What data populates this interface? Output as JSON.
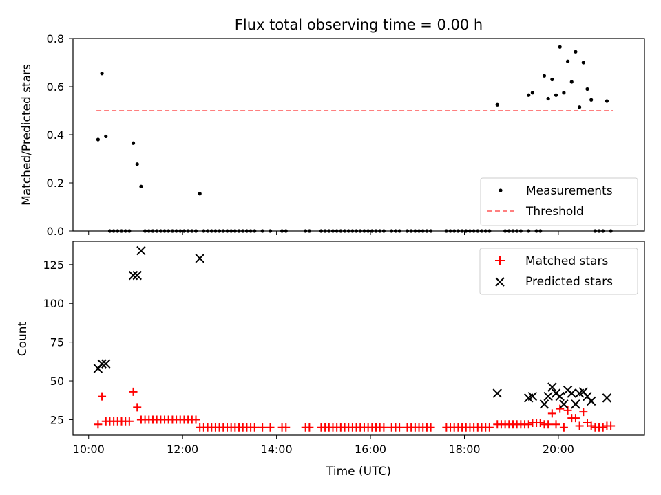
{
  "chart_data": [
    {
      "type": "scatter",
      "title": "Flux total observing time = 0.00 h",
      "xlabel": "",
      "ylabel": "Matched/Predicted stars",
      "xlim": [
        "09:40",
        "21:50"
      ],
      "ylim": [
        0,
        0.8
      ],
      "y_ticks": [
        "0.0",
        "0.2",
        "0.4",
        "0.6",
        "0.8"
      ],
      "grid": false,
      "legend_position": "lower right",
      "threshold": {
        "name": "Threshold",
        "value": 0.5,
        "x_start": "10:10",
        "x_end": "21:10",
        "color": "#ff7f7f",
        "style": "dashed"
      },
      "series": [
        {
          "name": "Measurements",
          "marker": "dot",
          "color": "#000000",
          "points": [
            [
              "10:12",
              0.38
            ],
            [
              "10:17",
              0.655
            ],
            [
              "10:22",
              0.393
            ],
            [
              "10:27",
              0
            ],
            [
              "10:32",
              0
            ],
            [
              "10:37",
              0
            ],
            [
              "10:42",
              0
            ],
            [
              "10:47",
              0
            ],
            [
              "10:52",
              0
            ],
            [
              "10:57",
              0.365
            ],
            [
              "11:02",
              0.278
            ],
            [
              "11:07",
              0.185
            ],
            [
              "11:12",
              0
            ],
            [
              "11:17",
              0
            ],
            [
              "11:22",
              0
            ],
            [
              "11:27",
              0
            ],
            [
              "11:32",
              0
            ],
            [
              "11:37",
              0
            ],
            [
              "11:42",
              0
            ],
            [
              "11:47",
              0
            ],
            [
              "11:52",
              0
            ],
            [
              "11:57",
              0
            ],
            [
              "12:02",
              0
            ],
            [
              "12:07",
              0
            ],
            [
              "12:12",
              0
            ],
            [
              "12:17",
              0
            ],
            [
              "12:22",
              0.155
            ],
            [
              "12:27",
              0
            ],
            [
              "12:32",
              0
            ],
            [
              "12:37",
              0
            ],
            [
              "12:42",
              0
            ],
            [
              "12:47",
              0
            ],
            [
              "12:52",
              0
            ],
            [
              "12:57",
              0
            ],
            [
              "13:02",
              0
            ],
            [
              "13:07",
              0
            ],
            [
              "13:12",
              0
            ],
            [
              "13:17",
              0
            ],
            [
              "13:22",
              0
            ],
            [
              "13:27",
              0
            ],
            [
              "13:32",
              0
            ],
            [
              "13:42",
              0
            ],
            [
              "13:52",
              0
            ],
            [
              "14:07",
              0
            ],
            [
              "14:12",
              0
            ],
            [
              "14:37",
              0
            ],
            [
              "14:42",
              0
            ],
            [
              "14:57",
              0
            ],
            [
              "15:02",
              0
            ],
            [
              "15:07",
              0
            ],
            [
              "15:12",
              0
            ],
            [
              "15:17",
              0
            ],
            [
              "15:22",
              0
            ],
            [
              "15:27",
              0
            ],
            [
              "15:32",
              0
            ],
            [
              "15:37",
              0
            ],
            [
              "15:42",
              0
            ],
            [
              "15:47",
              0
            ],
            [
              "15:52",
              0
            ],
            [
              "15:57",
              0
            ],
            [
              "16:02",
              0
            ],
            [
              "16:07",
              0
            ],
            [
              "16:12",
              0
            ],
            [
              "16:17",
              0
            ],
            [
              "16:27",
              0
            ],
            [
              "16:32",
              0
            ],
            [
              "16:37",
              0
            ],
            [
              "16:47",
              0
            ],
            [
              "16:52",
              0
            ],
            [
              "16:57",
              0
            ],
            [
              "17:02",
              0
            ],
            [
              "17:07",
              0
            ],
            [
              "17:12",
              0
            ],
            [
              "17:17",
              0
            ],
            [
              "17:37",
              0
            ],
            [
              "17:42",
              0
            ],
            [
              "17:47",
              0
            ],
            [
              "17:52",
              0
            ],
            [
              "17:57",
              0
            ],
            [
              "18:02",
              0
            ],
            [
              "18:07",
              0
            ],
            [
              "18:12",
              0
            ],
            [
              "18:17",
              0
            ],
            [
              "18:22",
              0
            ],
            [
              "18:27",
              0
            ],
            [
              "18:32",
              0
            ],
            [
              "18:42",
              0.525
            ],
            [
              "18:52",
              0
            ],
            [
              "18:57",
              0
            ],
            [
              "19:02",
              0
            ],
            [
              "19:07",
              0
            ],
            [
              "19:12",
              0
            ],
            [
              "19:22",
              0
            ],
            [
              "19:22",
              0.565
            ],
            [
              "19:27",
              0.575
            ],
            [
              "19:32",
              0
            ],
            [
              "19:37",
              0
            ],
            [
              "19:42",
              0.645
            ],
            [
              "19:47",
              0.55
            ],
            [
              "19:52",
              0.63
            ],
            [
              "19:57",
              0.565
            ],
            [
              "20:02",
              0.765
            ],
            [
              "20:07",
              0.575
            ],
            [
              "20:12",
              0.705
            ],
            [
              "20:17",
              0.62
            ],
            [
              "20:22",
              0.745
            ],
            [
              "20:27",
              0.515
            ],
            [
              "20:32",
              0.7
            ],
            [
              "20:37",
              0.59
            ],
            [
              "20:42",
              0.545
            ],
            [
              "20:47",
              0
            ],
            [
              "20:52",
              0
            ],
            [
              "20:57",
              0
            ],
            [
              "21:02",
              0.54
            ],
            [
              "21:07",
              0
            ]
          ]
        }
      ]
    },
    {
      "type": "scatter",
      "title": "",
      "xlabel": "Time (UTC)",
      "ylabel": "Count",
      "xlim": [
        "09:40",
        "21:50"
      ],
      "ylim": [
        15,
        140
      ],
      "x_ticks": [
        "10:00",
        "12:00",
        "14:00",
        "16:00",
        "18:00",
        "20:00"
      ],
      "y_ticks": [
        "25",
        "50",
        "75",
        "100",
        "125"
      ],
      "grid": false,
      "legend_position": "upper right",
      "series": [
        {
          "name": "Matched stars",
          "marker": "plus",
          "color": "#ff0000",
          "points": [
            [
              "10:12",
              22
            ],
            [
              "10:17",
              40
            ],
            [
              "10:22",
              24
            ],
            [
              "10:27",
              24
            ],
            [
              "10:32",
              24
            ],
            [
              "10:37",
              24
            ],
            [
              "10:42",
              24
            ],
            [
              "10:47",
              24
            ],
            [
              "10:52",
              24
            ],
            [
              "10:57",
              43
            ],
            [
              "11:02",
              33
            ],
            [
              "11:07",
              25
            ],
            [
              "11:12",
              25
            ],
            [
              "11:17",
              25
            ],
            [
              "11:22",
              25
            ],
            [
              "11:27",
              25
            ],
            [
              "11:32",
              25
            ],
            [
              "11:37",
              25
            ],
            [
              "11:42",
              25
            ],
            [
              "11:47",
              25
            ],
            [
              "11:52",
              25
            ],
            [
              "11:57",
              25
            ],
            [
              "12:02",
              25
            ],
            [
              "12:07",
              25
            ],
            [
              "12:12",
              25
            ],
            [
              "12:17",
              25
            ],
            [
              "12:22",
              20
            ],
            [
              "12:27",
              20
            ],
            [
              "12:32",
              20
            ],
            [
              "12:37",
              20
            ],
            [
              "12:42",
              20
            ],
            [
              "12:47",
              20
            ],
            [
              "12:52",
              20
            ],
            [
              "12:57",
              20
            ],
            [
              "13:02",
              20
            ],
            [
              "13:07",
              20
            ],
            [
              "13:12",
              20
            ],
            [
              "13:17",
              20
            ],
            [
              "13:22",
              20
            ],
            [
              "13:27",
              20
            ],
            [
              "13:32",
              20
            ],
            [
              "13:42",
              20
            ],
            [
              "13:52",
              20
            ],
            [
              "14:07",
              20
            ],
            [
              "14:12",
              20
            ],
            [
              "14:37",
              20
            ],
            [
              "14:42",
              20
            ],
            [
              "14:57",
              20
            ],
            [
              "15:02",
              20
            ],
            [
              "15:07",
              20
            ],
            [
              "15:12",
              20
            ],
            [
              "15:17",
              20
            ],
            [
              "15:22",
              20
            ],
            [
              "15:27",
              20
            ],
            [
              "15:32",
              20
            ],
            [
              "15:37",
              20
            ],
            [
              "15:42",
              20
            ],
            [
              "15:47",
              20
            ],
            [
              "15:52",
              20
            ],
            [
              "15:57",
              20
            ],
            [
              "16:02",
              20
            ],
            [
              "16:07",
              20
            ],
            [
              "16:12",
              20
            ],
            [
              "16:17",
              20
            ],
            [
              "16:27",
              20
            ],
            [
              "16:32",
              20
            ],
            [
              "16:37",
              20
            ],
            [
              "16:47",
              20
            ],
            [
              "16:52",
              20
            ],
            [
              "16:57",
              20
            ],
            [
              "17:02",
              20
            ],
            [
              "17:07",
              20
            ],
            [
              "17:12",
              20
            ],
            [
              "17:17",
              20
            ],
            [
              "17:37",
              20
            ],
            [
              "17:42",
              20
            ],
            [
              "17:47",
              20
            ],
            [
              "17:52",
              20
            ],
            [
              "17:57",
              20
            ],
            [
              "18:02",
              20
            ],
            [
              "18:07",
              20
            ],
            [
              "18:12",
              20
            ],
            [
              "18:17",
              20
            ],
            [
              "18:22",
              20
            ],
            [
              "18:27",
              20
            ],
            [
              "18:32",
              20
            ],
            [
              "18:42",
              22
            ],
            [
              "18:47",
              22
            ],
            [
              "18:52",
              22
            ],
            [
              "18:57",
              22
            ],
            [
              "19:02",
              22
            ],
            [
              "19:07",
              22
            ],
            [
              "19:12",
              22
            ],
            [
              "19:17",
              22
            ],
            [
              "19:22",
              22
            ],
            [
              "19:27",
              23
            ],
            [
              "19:32",
              23
            ],
            [
              "19:37",
              23
            ],
            [
              "19:42",
              22
            ],
            [
              "19:47",
              22
            ],
            [
              "19:52",
              29
            ],
            [
              "19:57",
              22
            ],
            [
              "20:02",
              32
            ],
            [
              "20:07",
              20
            ],
            [
              "20:12",
              31
            ],
            [
              "20:17",
              26
            ],
            [
              "20:22",
              26
            ],
            [
              "20:27",
              21
            ],
            [
              "20:32",
              30
            ],
            [
              "20:37",
              23
            ],
            [
              "20:42",
              21
            ],
            [
              "20:47",
              20
            ],
            [
              "20:52",
              20
            ],
            [
              "20:57",
              20
            ],
            [
              "21:02",
              21
            ],
            [
              "21:07",
              21
            ]
          ]
        },
        {
          "name": "Predicted stars",
          "marker": "x",
          "color": "#000000",
          "points": [
            [
              "10:12",
              58
            ],
            [
              "10:17",
              61
            ],
            [
              "10:22",
              61
            ],
            [
              "10:57",
              118
            ],
            [
              "11:02",
              118
            ],
            [
              "11:07",
              134
            ],
            [
              "12:22",
              129
            ],
            [
              "18:42",
              42
            ],
            [
              "19:22",
              39
            ],
            [
              "19:27",
              40
            ],
            [
              "19:42",
              35
            ],
            [
              "19:47",
              40
            ],
            [
              "19:52",
              46
            ],
            [
              "19:57",
              42
            ],
            [
              "20:02",
              40
            ],
            [
              "20:07",
              35
            ],
            [
              "20:12",
              44
            ],
            [
              "20:17",
              42
            ],
            [
              "20:22",
              35
            ],
            [
              "20:27",
              42
            ],
            [
              "20:32",
              43
            ],
            [
              "20:37",
              40
            ],
            [
              "20:42",
              37
            ],
            [
              "21:02",
              39
            ]
          ]
        }
      ]
    }
  ]
}
